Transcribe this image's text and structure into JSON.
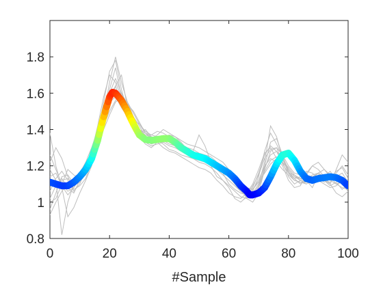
{
  "chart_data": {
    "type": "line",
    "title": "",
    "xlabel": "#Sample",
    "ylabel": "",
    "xlim": [
      0,
      100
    ],
    "ylim": [
      0.8,
      2.0
    ],
    "xticks": [
      0,
      20,
      40,
      60,
      80,
      100
    ],
    "xtick_labels": [
      "0",
      "20",
      "40",
      "60",
      "80",
      "100"
    ],
    "yticks": [
      0.8,
      1.0,
      1.2,
      1.4,
      1.6,
      1.8
    ],
    "ytick_labels": [
      "0.8",
      "1",
      "1.2",
      "1.4",
      "1.6",
      "1.8"
    ],
    "grid": false,
    "colors": {
      "background_series": "#bdbdbd",
      "axis": "#262626",
      "mean_colormap": "jet"
    },
    "mean_series": {
      "x": [
        0,
        2,
        4,
        6,
        8,
        10,
        12,
        14,
        16,
        18,
        20,
        21,
        22,
        24,
        26,
        28,
        30,
        32,
        34,
        36,
        38,
        40,
        42,
        44,
        46,
        48,
        50,
        52,
        54,
        56,
        58,
        60,
        62,
        64,
        66,
        67,
        68,
        70,
        72,
        74,
        76,
        78,
        80,
        82,
        84,
        86,
        88,
        90,
        92,
        94,
        96,
        98,
        100
      ],
      "y": [
        1.11,
        1.1,
        1.09,
        1.09,
        1.11,
        1.14,
        1.18,
        1.24,
        1.34,
        1.47,
        1.58,
        1.605,
        1.6,
        1.56,
        1.5,
        1.43,
        1.37,
        1.345,
        1.34,
        1.345,
        1.35,
        1.35,
        1.33,
        1.3,
        1.28,
        1.26,
        1.25,
        1.24,
        1.22,
        1.2,
        1.18,
        1.16,
        1.13,
        1.09,
        1.06,
        1.04,
        1.04,
        1.05,
        1.08,
        1.14,
        1.21,
        1.26,
        1.27,
        1.23,
        1.17,
        1.13,
        1.12,
        1.13,
        1.135,
        1.14,
        1.135,
        1.12,
        1.09
      ]
    },
    "background_series": [
      {
        "y": [
          1.02,
          1.09,
          1.13,
          1.08,
          1.05,
          1.12,
          1.2,
          1.26,
          1.38,
          1.55,
          1.72,
          1.78,
          1.62,
          1.5,
          1.45,
          1.38,
          1.4,
          1.36,
          1.34,
          1.36,
          1.37,
          1.35,
          1.3,
          1.26,
          1.24,
          1.26,
          1.22,
          1.2,
          1.14,
          1.12,
          1.08,
          1.02,
          1.0,
          1.03,
          1.08,
          1.16,
          1.26,
          1.31,
          1.28,
          1.21,
          1.16,
          1.13,
          1.1,
          1.12,
          1.08,
          1.15,
          1.12,
          1.09,
          1.11,
          1.07,
          1.1
        ]
      },
      {
        "y": [
          1.38,
          1.2,
          1.08,
          0.92,
          0.97,
          1.05,
          1.12,
          1.2,
          1.35,
          1.52,
          1.62,
          1.74,
          1.58,
          1.48,
          1.42,
          1.36,
          1.32,
          1.3,
          1.33,
          1.3,
          1.28,
          1.27,
          1.25,
          1.23,
          1.21,
          1.19,
          1.18,
          1.16,
          1.12,
          1.09,
          1.05,
          1.03,
          1.02,
          1.05,
          1.1,
          1.18,
          1.27,
          1.3,
          1.24,
          1.2,
          1.12,
          1.08,
          1.09,
          1.16,
          1.2,
          1.18,
          1.14,
          1.1,
          1.05,
          1.03,
          1.06
        ]
      },
      {
        "y": [
          0.96,
          1.05,
          1.14,
          1.15,
          1.1,
          1.16,
          1.22,
          1.3,
          1.4,
          1.48,
          1.66,
          1.8,
          1.66,
          1.55,
          1.47,
          1.42,
          1.36,
          1.35,
          1.36,
          1.34,
          1.32,
          1.31,
          1.29,
          1.27,
          1.28,
          1.24,
          1.22,
          1.21,
          1.2,
          1.16,
          1.1,
          1.07,
          1.05,
          1.04,
          1.09,
          1.15,
          1.24,
          1.29,
          1.3,
          1.22,
          1.14,
          1.1,
          1.12,
          1.15,
          1.14,
          1.12,
          1.14,
          1.17,
          1.12,
          1.1,
          1.06
        ]
      },
      {
        "y": [
          1.18,
          1.12,
          0.82,
          1.0,
          1.1,
          1.14,
          1.17,
          1.24,
          1.3,
          1.44,
          1.52,
          1.64,
          1.7,
          1.52,
          1.44,
          1.4,
          1.34,
          1.33,
          1.34,
          1.32,
          1.29,
          1.28,
          1.26,
          1.25,
          1.24,
          1.22,
          1.21,
          1.19,
          1.16,
          1.12,
          1.09,
          1.06,
          1.03,
          1.02,
          1.07,
          1.12,
          1.2,
          1.24,
          1.22,
          1.18,
          1.15,
          1.12,
          1.11,
          1.1,
          1.13,
          1.13,
          1.12,
          1.11,
          1.14,
          1.16,
          1.11
        ]
      },
      {
        "y": [
          1.26,
          1.18,
          1.1,
          1.06,
          1.08,
          1.13,
          1.19,
          1.27,
          1.36,
          1.5,
          1.6,
          1.68,
          1.6,
          1.49,
          1.44,
          1.4,
          1.38,
          1.37,
          1.39,
          1.38,
          1.36,
          1.33,
          1.3,
          1.28,
          1.27,
          1.26,
          1.25,
          1.23,
          1.2,
          1.17,
          1.14,
          1.1,
          1.07,
          1.06,
          1.06,
          1.14,
          1.28,
          1.38,
          1.32,
          1.25,
          1.18,
          1.14,
          1.13,
          1.15,
          1.2,
          1.22,
          1.18,
          1.14,
          1.1,
          1.08,
          1.07
        ]
      },
      {
        "y": [
          1.1,
          1.08,
          1.12,
          1.13,
          1.09,
          1.11,
          1.16,
          1.23,
          1.33,
          1.45,
          1.56,
          1.62,
          1.56,
          1.48,
          1.45,
          1.43,
          1.38,
          1.35,
          1.37,
          1.4,
          1.38,
          1.36,
          1.34,
          1.32,
          1.31,
          1.3,
          1.28,
          1.26,
          1.24,
          1.22,
          1.18,
          1.13,
          1.08,
          1.04,
          1.05,
          1.1,
          1.22,
          1.42,
          1.36,
          1.24,
          1.16,
          1.15,
          1.12,
          1.1,
          1.12,
          1.15,
          1.14,
          1.12,
          1.16,
          1.2,
          1.15
        ]
      },
      {
        "y": [
          0.93,
          1.0,
          1.06,
          1.1,
          1.12,
          1.12,
          1.15,
          1.21,
          1.32,
          1.42,
          1.5,
          1.56,
          1.6,
          1.54,
          1.5,
          1.44,
          1.38,
          1.36,
          1.35,
          1.34,
          1.35,
          1.34,
          1.32,
          1.3,
          1.29,
          1.27,
          1.26,
          1.25,
          1.22,
          1.2,
          1.16,
          1.12,
          1.07,
          1.02,
          1.0,
          1.05,
          1.18,
          1.28,
          1.3,
          1.26,
          1.2,
          1.16,
          1.15,
          1.14,
          1.13,
          1.16,
          1.18,
          1.15,
          1.12,
          1.1,
          1.12
        ]
      },
      {
        "y": [
          1.22,
          1.3,
          1.24,
          1.14,
          1.07,
          1.09,
          1.13,
          1.22,
          1.34,
          1.49,
          1.58,
          1.64,
          1.55,
          1.46,
          1.4,
          1.37,
          1.33,
          1.31,
          1.32,
          1.33,
          1.31,
          1.3,
          1.28,
          1.26,
          1.24,
          1.23,
          1.22,
          1.2,
          1.18,
          1.15,
          1.12,
          1.09,
          1.06,
          1.04,
          1.03,
          1.08,
          1.17,
          1.23,
          1.25,
          1.22,
          1.18,
          1.14,
          1.12,
          1.11,
          1.13,
          1.12,
          1.1,
          1.08,
          1.09,
          1.12,
          1.1
        ]
      },
      {
        "y": [
          1.06,
          1.13,
          1.17,
          1.12,
          1.06,
          1.1,
          1.18,
          1.28,
          1.42,
          1.58,
          1.7,
          1.66,
          1.58,
          1.52,
          1.46,
          1.39,
          1.34,
          1.32,
          1.33,
          1.36,
          1.33,
          1.31,
          1.29,
          1.27,
          1.28,
          1.37,
          1.31,
          1.22,
          1.2,
          1.18,
          1.15,
          1.11,
          1.08,
          1.05,
          1.04,
          1.08,
          1.2,
          1.33,
          1.35,
          1.26,
          1.16,
          1.12,
          1.11,
          1.11,
          1.14,
          1.16,
          1.12,
          1.1,
          1.18,
          1.26,
          1.22
        ]
      },
      {
        "y": [
          1.14,
          1.16,
          1.09,
          1.04,
          1.08,
          1.15,
          1.21,
          1.28,
          1.37,
          1.46,
          1.55,
          1.58,
          1.52,
          1.47,
          1.43,
          1.4,
          1.37,
          1.36,
          1.34,
          1.35,
          1.37,
          1.36,
          1.33,
          1.29,
          1.26,
          1.24,
          1.23,
          1.22,
          1.21,
          1.19,
          1.15,
          1.1,
          1.06,
          1.03,
          1.04,
          1.09,
          1.19,
          1.26,
          1.28,
          1.24,
          1.17,
          1.13,
          1.14,
          1.17,
          1.16,
          1.13,
          1.11,
          1.13,
          1.17,
          1.19,
          1.13
        ]
      },
      {
        "y": [
          1.0,
          1.02,
          1.1,
          1.18,
          1.15,
          1.13,
          1.16,
          1.22,
          1.3,
          1.4,
          1.48,
          1.55,
          1.58,
          1.55,
          1.49,
          1.43,
          1.39,
          1.37,
          1.36,
          1.35,
          1.34,
          1.32,
          1.31,
          1.29,
          1.27,
          1.25,
          1.24,
          1.23,
          1.21,
          1.19,
          1.17,
          1.13,
          1.1,
          1.08,
          1.07,
          1.11,
          1.16,
          1.21,
          1.24,
          1.23,
          1.19,
          1.15,
          1.13,
          1.12,
          1.15,
          1.16,
          1.14,
          1.12,
          1.1,
          1.11,
          1.08
        ]
      }
    ]
  }
}
